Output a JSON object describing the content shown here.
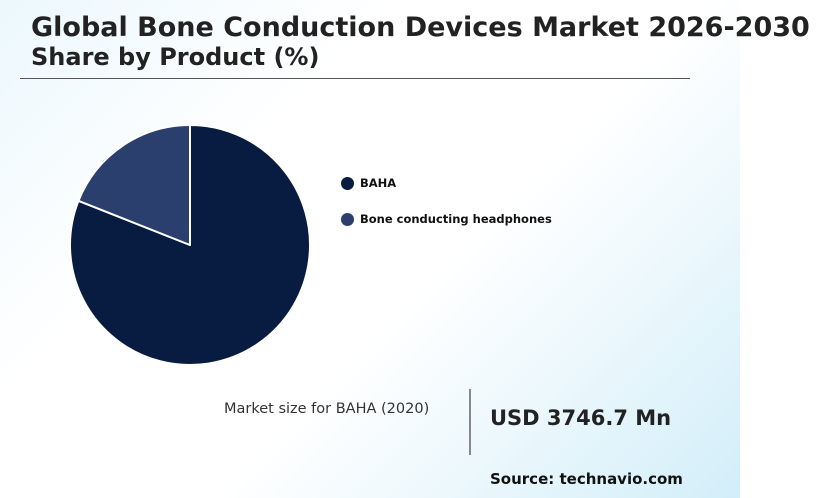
{
  "header": {
    "title": "Global Bone Conduction Devices Market 2026-2030",
    "subtitle": "Share by Product (%)"
  },
  "chart_data": {
    "type": "pie",
    "title": "Global Bone Conduction Devices Market 2026-2030",
    "subtitle": "Share by Product (%)",
    "categories": [
      "BAHA",
      "Bone conducting headphones"
    ],
    "values": [
      81,
      19
    ],
    "colors": [
      "#081b40",
      "#2a3f6e"
    ],
    "start_angle_deg": 0,
    "direction": "clockwise",
    "legend_position": "right"
  },
  "legend": {
    "items": [
      {
        "label": "BAHA",
        "color": "#081b40"
      },
      {
        "label": "Bone conducting headphones",
        "color": "#2a3f6e"
      }
    ]
  },
  "stat": {
    "label": "Market size for BAHA (2020)",
    "value": "USD 3746.7 Mn"
  },
  "source": "Source: technavio.com"
}
